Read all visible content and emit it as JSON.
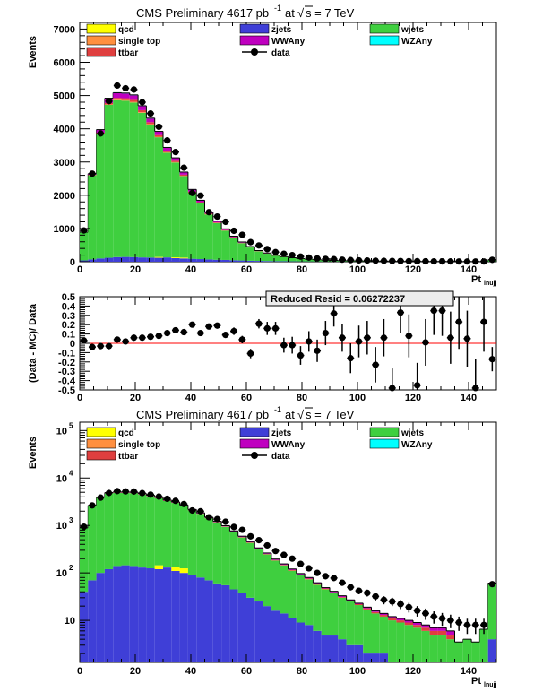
{
  "chart_data": [
    {
      "type": "stacked-histogram",
      "panel": "top",
      "title": "CMS Preliminary 4617 pb",
      "title_sup": "-1",
      "title_energy_prefix": "at",
      "title_energy": "s = 7 TeV",
      "ylabel": "Events",
      "xlabel": "Pt",
      "xlabel_sub": "lnujj",
      "xlim": [
        0,
        150
      ],
      "ylim": [
        0,
        7200
      ],
      "log_scale": false,
      "x_ticks": [
        "0",
        "20",
        "40",
        "60",
        "80",
        "100",
        "120",
        "140"
      ],
      "y_ticks": [
        "0",
        "1000",
        "2000",
        "3000",
        "4000",
        "5000",
        "6000",
        "7000"
      ],
      "legend": [
        {
          "label": "qcd",
          "color": "#ffff00"
        },
        {
          "label": "zjets",
          "color": "#3f3fd7"
        },
        {
          "label": "wjets",
          "color": "#3fcf3f"
        },
        {
          "label": "single top",
          "color": "#ff8f3f"
        },
        {
          "label": "WWAny",
          "color": "#bf00bf"
        },
        {
          "label": "WZAny",
          "color": "#00ffff"
        },
        {
          "label": "ttbar",
          "color": "#df3f3f"
        },
        {
          "label": "data",
          "color": "#000000"
        }
      ],
      "bin_width": 3,
      "x": [
        1.5,
        4.5,
        7.5,
        10.5,
        13.5,
        16.5,
        19.5,
        22.5,
        25.5,
        28.5,
        31.5,
        34.5,
        37.5,
        40.5,
        43.5,
        46.5,
        49.5,
        52.5,
        55.5,
        58.5,
        61.5,
        64.5,
        67.5,
        70.5,
        73.5,
        76.5,
        79.5,
        82.5,
        85.5,
        88.5,
        91.5,
        94.5,
        97.5,
        100.5,
        103.5,
        106.5,
        109.5,
        112.5,
        115.5,
        118.5,
        121.5,
        124.5,
        127.5,
        130.5,
        133.5,
        136.5,
        139.5,
        142.5,
        145.5,
        148.5
      ],
      "series": [
        {
          "name": "zjets",
          "values": [
            40,
            70,
            100,
            120,
            140,
            145,
            140,
            130,
            125,
            120,
            130,
            110,
            100,
            90,
            80,
            70,
            60,
            55,
            45,
            38,
            30,
            25,
            20,
            16,
            14,
            11,
            9,
            8,
            6,
            5,
            5,
            4,
            3,
            3,
            2,
            2,
            2,
            1,
            1,
            1,
            1,
            1,
            1,
            1,
            1,
            0.5,
            1,
            0.5,
            0.5,
            4
          ]
        },
        {
          "name": "qcd",
          "values": [
            0,
            0,
            0,
            0,
            0,
            0,
            0,
            0,
            0,
            25,
            0,
            25,
            25,
            0,
            0,
            0,
            0,
            0,
            0,
            0,
            0,
            0,
            0,
            0,
            0,
            0,
            0,
            0,
            0,
            0,
            0,
            0,
            0,
            0,
            0,
            0,
            0,
            0,
            0,
            0,
            0,
            0,
            0,
            0,
            0,
            0,
            0,
            0,
            0,
            0
          ]
        },
        {
          "name": "wjets",
          "values": [
            840,
            2530,
            3750,
            4600,
            4720,
            4700,
            4650,
            4350,
            4000,
            3600,
            3150,
            2850,
            2450,
            1980,
            1680,
            1350,
            1100,
            880,
            680,
            520,
            400,
            290,
            225,
            165,
            130,
            100,
            80,
            65,
            50,
            40,
            32,
            26,
            22,
            18,
            15,
            12,
            10,
            9,
            8,
            7,
            6,
            5,
            4,
            4,
            3,
            3,
            3,
            3,
            6,
            55
          ]
        },
        {
          "name": "single top",
          "values": [
            2,
            5,
            10,
            15,
            20,
            20,
            20,
            20,
            18,
            16,
            14,
            12,
            10,
            9,
            8,
            7,
            6,
            5,
            4,
            3,
            3,
            2,
            2,
            2,
            1,
            1,
            1,
            1,
            1,
            1,
            1,
            0,
            0,
            0,
            0,
            0,
            0,
            0,
            0,
            0,
            0,
            0,
            0,
            0,
            0,
            0,
            0,
            0,
            0,
            0
          ]
        },
        {
          "name": "ttbar",
          "values": [
            2,
            10,
            25,
            40,
            50,
            55,
            60,
            60,
            55,
            50,
            45,
            40,
            35,
            30,
            25,
            22,
            18,
            15,
            12,
            10,
            8,
            6,
            5,
            4,
            3,
            3,
            2,
            2,
            2,
            1,
            1,
            1,
            1,
            1,
            1,
            1,
            1,
            1,
            1,
            1,
            1,
            1,
            1,
            1,
            1,
            0,
            0,
            0,
            0,
            2
          ]
        },
        {
          "name": "WWAny",
          "values": [
            5,
            30,
            80,
            130,
            140,
            140,
            135,
            120,
            110,
            100,
            90,
            80,
            70,
            60,
            50,
            40,
            35,
            30,
            25,
            20,
            15,
            12,
            10,
            8,
            6,
            5,
            4,
            3,
            3,
            2,
            2,
            2,
            1,
            1,
            1,
            1,
            1,
            1,
            1,
            1,
            1,
            1,
            1,
            1,
            1,
            0,
            0,
            0,
            0,
            0
          ]
        },
        {
          "name": "WZAny",
          "values": [
            1,
            5,
            10,
            15,
            15,
            15,
            15,
            14,
            12,
            11,
            10,
            9,
            8,
            7,
            6,
            5,
            4,
            4,
            3,
            3,
            2,
            2,
            1,
            1,
            1,
            1,
            1,
            1,
            0,
            0,
            0,
            0,
            0,
            0,
            0,
            0,
            0,
            0,
            0,
            0,
            0,
            0,
            0,
            0,
            0,
            0,
            0,
            0,
            0,
            0
          ]
        }
      ],
      "data_points": [
        940,
        2650,
        3860,
        4830,
        5300,
        5220,
        5180,
        4800,
        4460,
        4060,
        3650,
        3300,
        2830,
        2070,
        1990,
        1490,
        1360,
        1200,
        930,
        810,
        590,
        490,
        380,
        290,
        240,
        200,
        155,
        125,
        100,
        85,
        78,
        62,
        50,
        42,
        38,
        32,
        27,
        25,
        22,
        19,
        16,
        14,
        12,
        11,
        10,
        9,
        8,
        8,
        8,
        58
      ]
    },
    {
      "type": "scatter-errorbars",
      "panel": "middle",
      "ylabel": "(Data - MC)/ Data",
      "xlim": [
        0,
        150
      ],
      "ylim": [
        -0.5,
        0.5
      ],
      "x_ticks": [
        "0",
        "20",
        "40",
        "60",
        "80",
        "100",
        "120",
        "140"
      ],
      "y_ticks": [
        "0.5",
        "0.4",
        "0.3",
        "0.2",
        "0.1",
        "0",
        "-0.1",
        "-0.2",
        "-0.3",
        "-0.4",
        "-0.5"
      ],
      "annotation": "Reduced Resid = 0.06272237",
      "x": [
        1.5,
        4.5,
        7.5,
        10.5,
        13.5,
        16.5,
        19.5,
        22.5,
        25.5,
        28.5,
        31.5,
        34.5,
        37.5,
        40.5,
        43.5,
        46.5,
        49.5,
        52.5,
        55.5,
        58.5,
        61.5,
        64.5,
        67.5,
        70.5,
        73.5,
        76.5,
        79.5,
        82.5,
        85.5,
        88.5,
        91.5,
        94.5,
        97.5,
        100.5,
        103.5,
        106.5,
        109.5,
        112.5,
        115.5,
        118.5,
        121.5,
        124.5,
        127.5,
        130.5,
        133.5,
        136.5,
        139.5,
        142.5,
        145.5,
        148.5
      ],
      "values": [
        0.03,
        -0.04,
        -0.03,
        -0.03,
        0.04,
        0.02,
        0.06,
        0.06,
        0.07,
        0.08,
        0.11,
        0.14,
        0.12,
        0.2,
        0.11,
        0.18,
        0.19,
        0.09,
        0.13,
        0.04,
        -0.11,
        0.21,
        0.16,
        0.16,
        -0.02,
        -0.02,
        -0.13,
        0.02,
        -0.08,
        0.11,
        0.32,
        0.06,
        -0.16,
        0.02,
        0.06,
        -0.23,
        0.06,
        -0.48,
        0.33,
        0.08,
        -0.45,
        0.01,
        0.35,
        0.35,
        0.06,
        0.23,
        0.05,
        -0.48,
        0.23,
        -0.17
      ],
      "errors": [
        0.03,
        0.02,
        0.02,
        0.02,
        0.02,
        0.02,
        0.02,
        0.02,
        0.02,
        0.02,
        0.02,
        0.02,
        0.02,
        0.02,
        0.02,
        0.03,
        0.03,
        0.03,
        0.04,
        0.04,
        0.05,
        0.05,
        0.07,
        0.07,
        0.08,
        0.09,
        0.1,
        0.11,
        0.12,
        0.13,
        0.14,
        0.15,
        0.16,
        0.17,
        0.18,
        0.19,
        0.2,
        0.21,
        0.22,
        0.23,
        0.24,
        0.25,
        0.26,
        0.27,
        0.28,
        0.29,
        0.3,
        0.31,
        0.32,
        0.13
      ]
    },
    {
      "type": "stacked-histogram",
      "panel": "bottom",
      "title": "CMS Preliminary 4617 pb",
      "title_sup": "-1",
      "title_energy_prefix": "at",
      "title_energy": "s = 7 TeV",
      "ylabel": "Events",
      "xlabel": "Pt",
      "xlabel_sub": "lnujj",
      "xlim": [
        0,
        150
      ],
      "ylim": [
        1.3,
        150000
      ],
      "log_scale": true,
      "y_ticks": [
        {
          "base": "10",
          "exp": "",
          "value": 10
        },
        {
          "base": "10",
          "exp": "2",
          "value": 100
        },
        {
          "base": "10",
          "exp": "3",
          "value": 1000
        },
        {
          "base": "10",
          "exp": "4",
          "value": 10000
        },
        {
          "base": "10",
          "exp": "5",
          "value": 100000
        }
      ],
      "x_ticks": [
        "0",
        "20",
        "40",
        "60",
        "80",
        "100",
        "120",
        "140"
      ],
      "same_data_as_panel": "top"
    }
  ]
}
